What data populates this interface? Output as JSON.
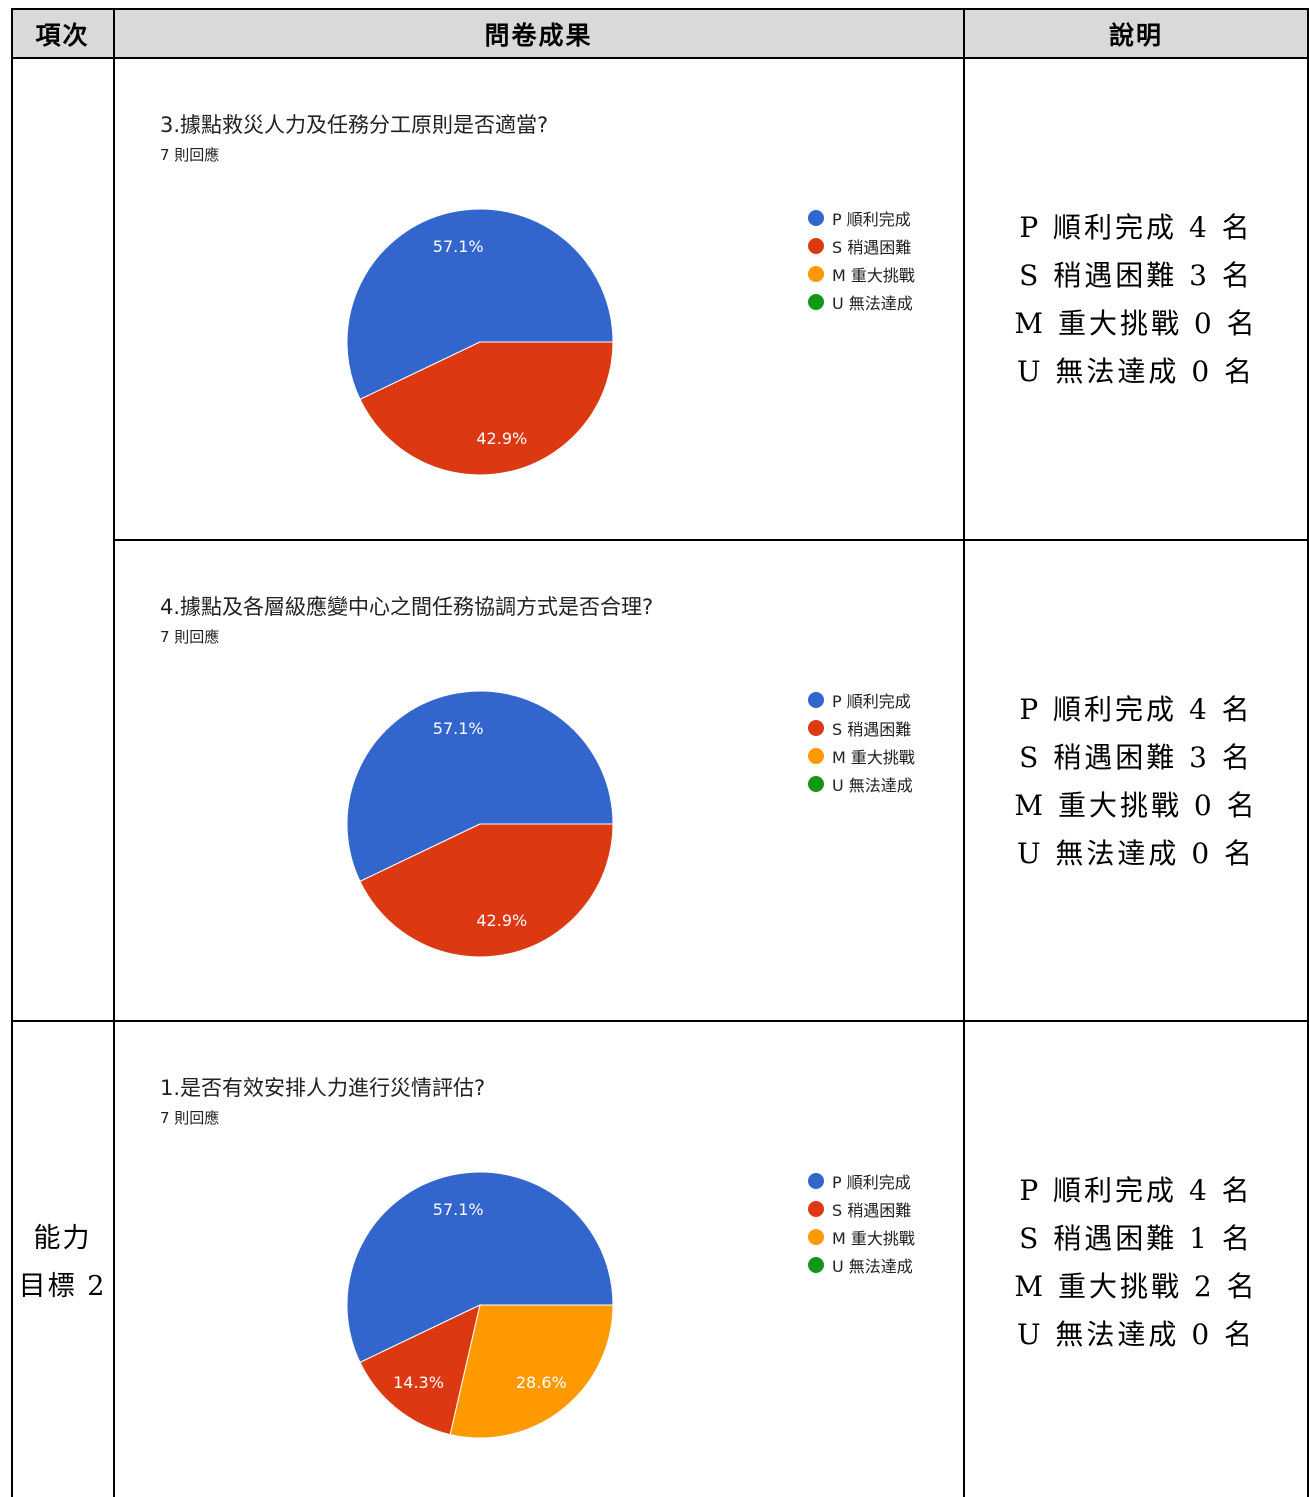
{
  "header": {
    "col1": "項次",
    "col2": "問卷成果",
    "col3": "說明"
  },
  "legend_colors": {
    "P": "#3366cc",
    "S": "#dc3912",
    "M": "#ff9900",
    "U": "#109618"
  },
  "rows": [
    {
      "item_label_lines": [],
      "question": "3.據點救災人力及任務分工原則是否適當?",
      "responses": "7 則回應",
      "legend": [
        "P 順利完成",
        "S 稍遇困難",
        "M 重大挑戰",
        "U 無法達成"
      ],
      "chart_data": {
        "type": "pie",
        "title": "3.據點救災人力及任務分工原則是否適當?",
        "labels": [
          "P 順利完成",
          "S 稍遇困難",
          "M 重大挑戰",
          "U 無法達成"
        ],
        "values": [
          57.1,
          42.9,
          0,
          0
        ],
        "data_labels": [
          "57.1%",
          "42.9%",
          "",
          ""
        ],
        "colors": [
          "#3366cc",
          "#dc3912",
          "#ff9900",
          "#109618"
        ],
        "legend_position": "right"
      },
      "desc_lines": [
        "P 順利完成 4 名",
        "S 稍遇困難 3 名",
        "M 重大挑戰 0 名",
        "U 無法達成 0 名"
      ]
    },
    {
      "item_label_lines": [],
      "question": "4.據點及各層級應變中心之間任務協調方式是否合理?",
      "responses": "7 則回應",
      "legend": [
        "P 順利完成",
        "S 稍遇困難",
        "M 重大挑戰",
        "U 無法達成"
      ],
      "chart_data": {
        "type": "pie",
        "title": "4.據點及各層級應變中心之間任務協調方式是否合理?",
        "labels": [
          "P 順利完成",
          "S 稍遇困難",
          "M 重大挑戰",
          "U 無法達成"
        ],
        "values": [
          57.1,
          42.9,
          0,
          0
        ],
        "data_labels": [
          "57.1%",
          "42.9%",
          "",
          ""
        ],
        "colors": [
          "#3366cc",
          "#dc3912",
          "#ff9900",
          "#109618"
        ],
        "legend_position": "right"
      },
      "desc_lines": [
        "P 順利完成 4 名",
        "S 稍遇困難 3 名",
        "M 重大挑戰 0 名",
        "U 無法達成 0 名"
      ]
    },
    {
      "item_label_lines": [
        "能力",
        "目標 2"
      ],
      "question": "1.是否有效安排人力進行災情評估?",
      "responses": "7 則回應",
      "legend": [
        "P 順利完成",
        "S 稍遇困難",
        "M 重大挑戰",
        "U 無法達成"
      ],
      "chart_data": {
        "type": "pie",
        "title": "1.是否有效安排人力進行災情評估?",
        "labels": [
          "P 順利完成",
          "S 稍遇困難",
          "M 重大挑戰",
          "U 無法達成"
        ],
        "values": [
          57.1,
          14.3,
          28.6,
          0
        ],
        "data_labels": [
          "57.1%",
          "14.3%",
          "28.6%",
          ""
        ],
        "colors": [
          "#3366cc",
          "#dc3912",
          "#ff9900",
          "#109618"
        ],
        "legend_position": "right"
      },
      "desc_lines": [
        "P 順利完成 4 名",
        "S 稍遇困難 1 名",
        "M 重大挑戰 2 名",
        "U 無法達成 0 名"
      ]
    }
  ]
}
